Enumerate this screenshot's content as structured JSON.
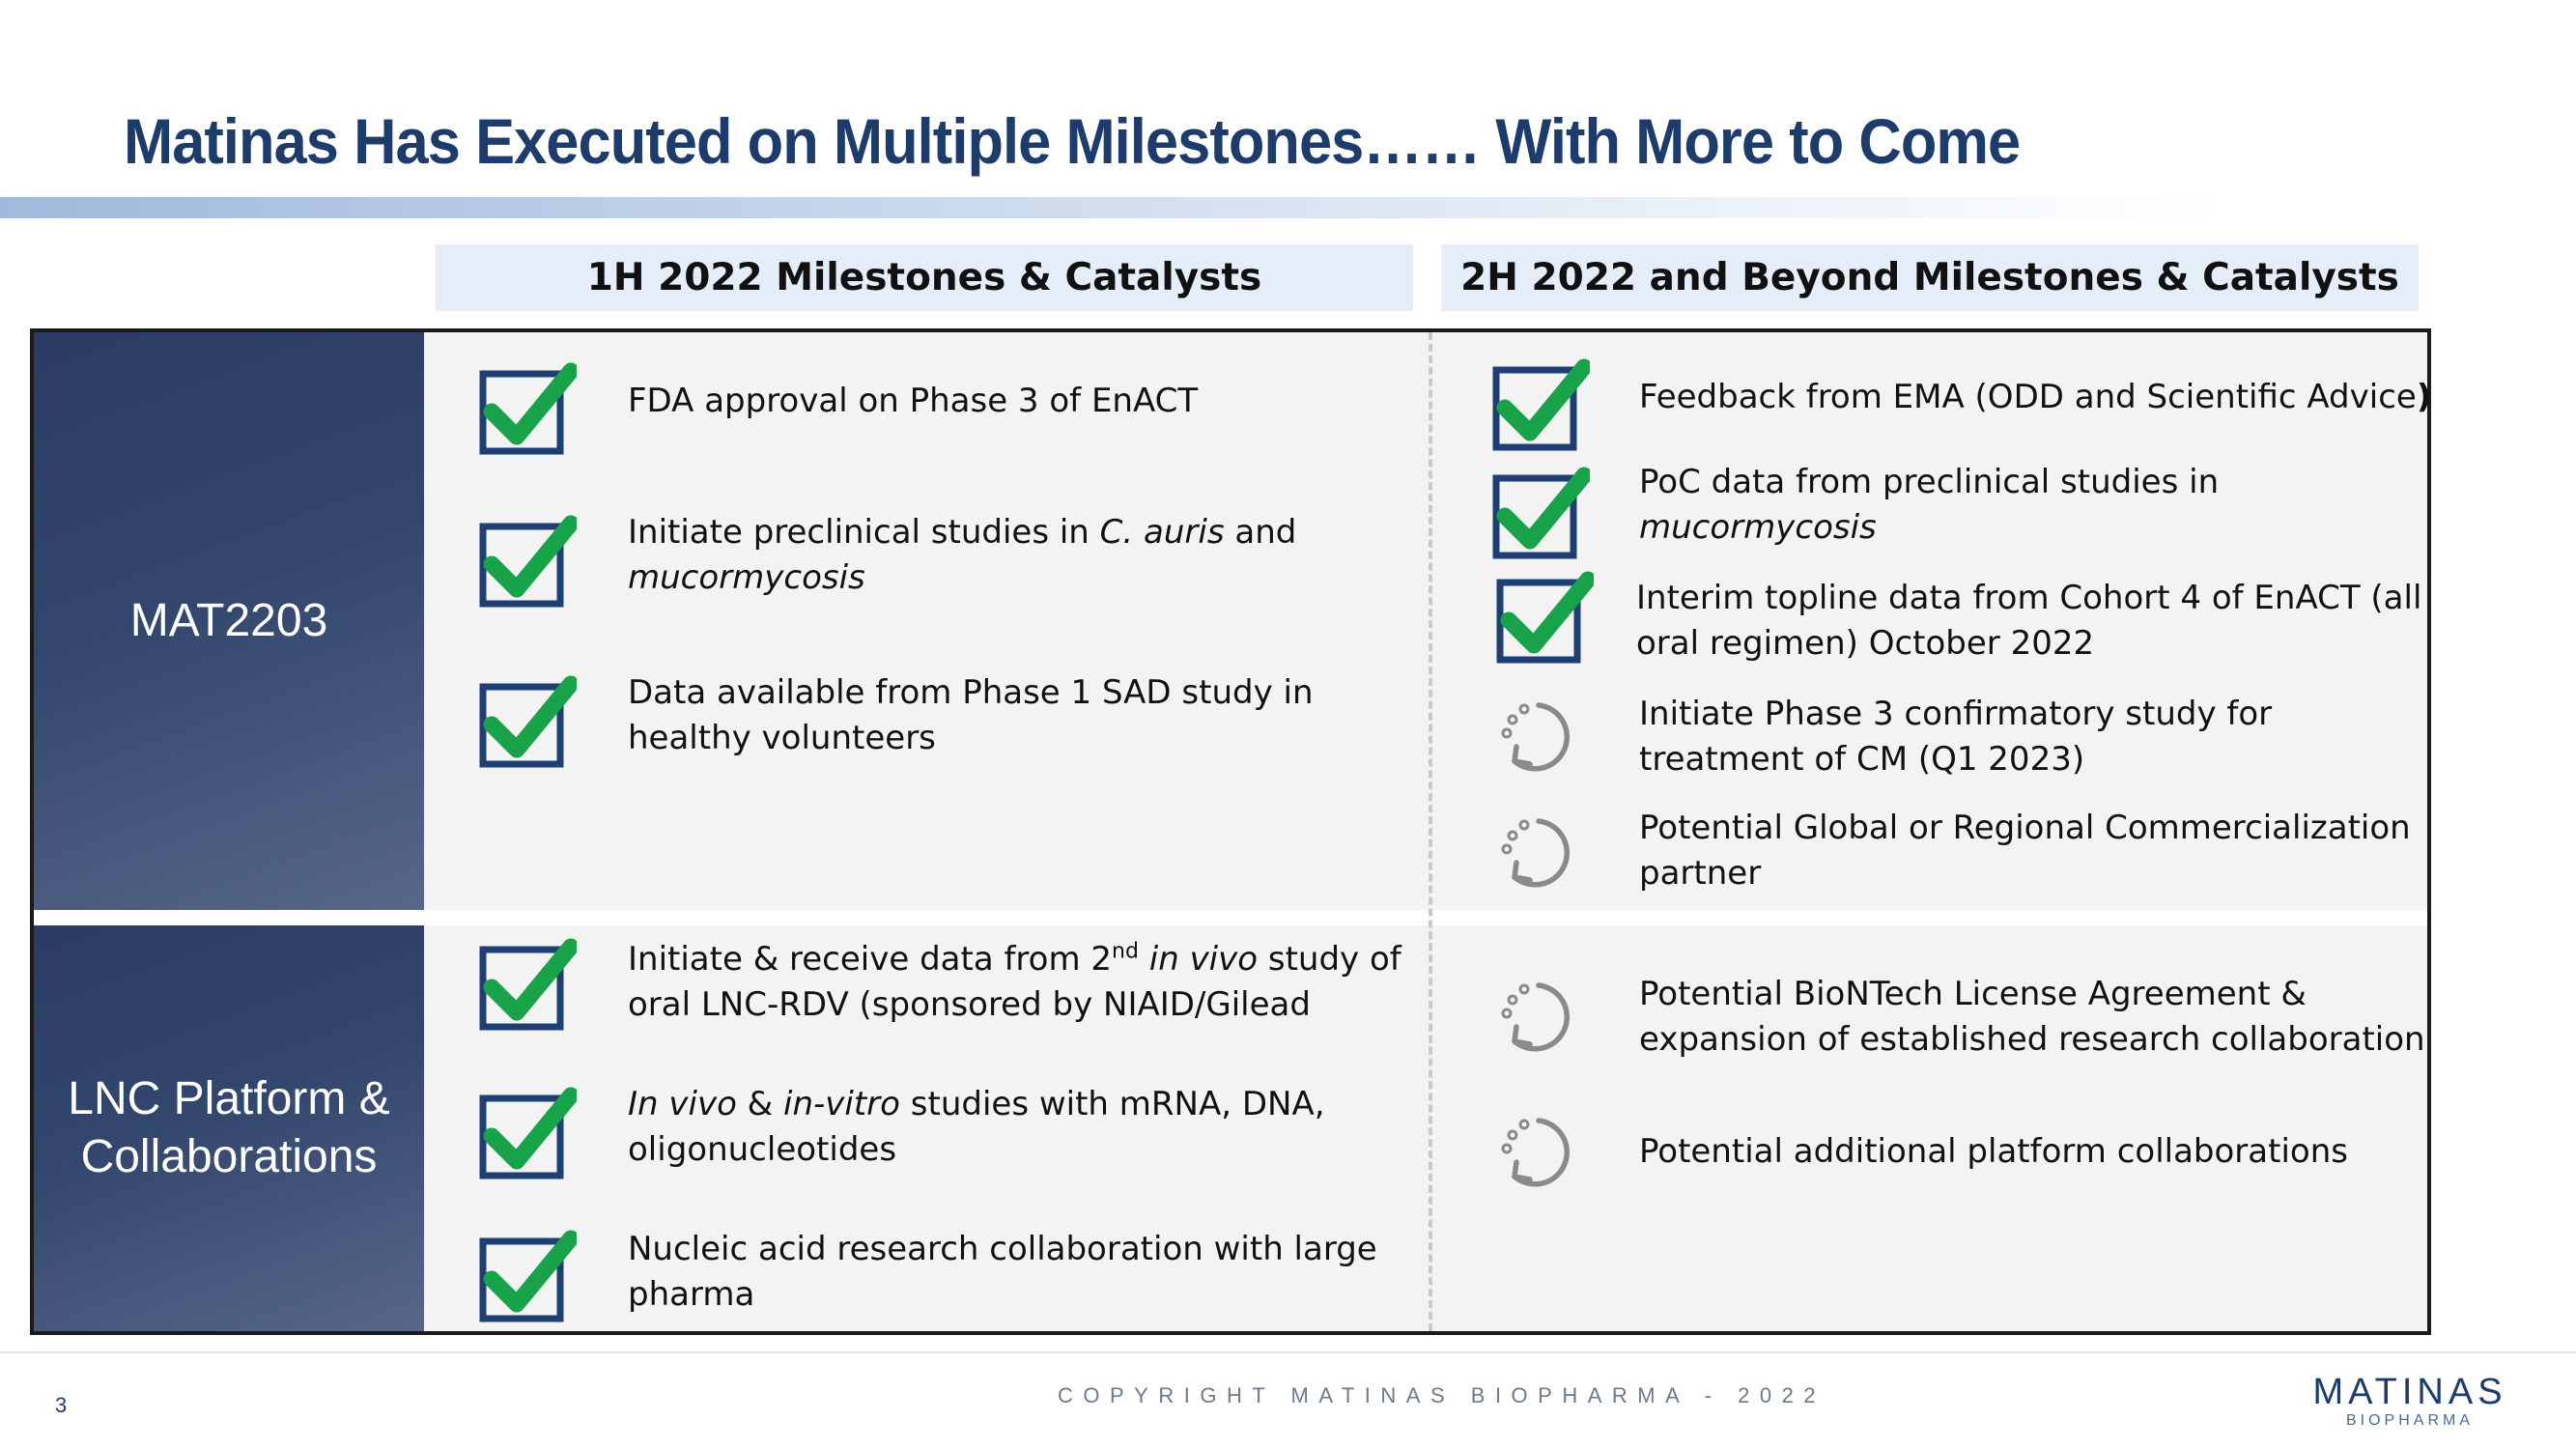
{
  "title": "Matinas Has Executed on Multiple Milestones…… With More to Come",
  "columns": {
    "first_half": "1H 2022 Milestones & Catalysts",
    "second_half": "2H 2022 and Beyond Milestones & Catalysts"
  },
  "rows": {
    "mat2203": {
      "label": "MAT2203",
      "first_half": [
        {
          "status": "completed",
          "line1": "FDA approval on Phase 3 of EnACT"
        },
        {
          "status": "completed",
          "line1a": "Initiate preclinical studies in ",
          "line1b": "C. auris",
          "line1c": " and",
          "line2": "mucormycosis"
        },
        {
          "status": "completed",
          "line1": "Data available from Phase 1 SAD study in",
          "line2": "healthy volunteers"
        }
      ],
      "second_half": [
        {
          "status": "completed",
          "line1": "Feedback from EMA (ODD and Scientific Advice",
          "line1_close": ")"
        },
        {
          "status": "completed",
          "line1": "PoC data from preclinical studies in",
          "line2": "mucormycosis"
        },
        {
          "status": "completed",
          "line1": "Interim topline data from Cohort 4 of EnACT (all",
          "line2": "oral regimen) October 2022"
        },
        {
          "status": "pending",
          "line1": "Initiate Phase 3 confirmatory study for",
          "line2": "treatment of CM (Q1 2023)"
        },
        {
          "status": "pending",
          "line1": "Potential Global or Regional Commercialization",
          "line2": "partner"
        }
      ]
    },
    "lnc": {
      "label_line1": "LNC Platform &",
      "label_line2": "Collaborations",
      "first_half": [
        {
          "status": "completed",
          "line1a": "Initiate & receive data from 2",
          "line1_sup": "nd",
          "line1b": " in vivo",
          "line1c": " study of",
          "line2": "oral LNC-RDV (sponsored by NIAID/Gilead"
        },
        {
          "status": "completed",
          "line1a": "In vivo",
          "line1b": " & ",
          "line1c": "in-vitro",
          "line1d": " studies with mRNA, DNA,",
          "line2": "oligonucleotides"
        },
        {
          "status": "completed",
          "line1": "Nucleic acid research collaboration with large",
          "line2": "pharma"
        }
      ],
      "second_half": [
        {
          "status": "pending",
          "line1": "Potential BioNTech License Agreement &",
          "line2": "expansion of established research collaboration"
        },
        {
          "status": "pending",
          "line1": "Potential additional platform collaborations"
        }
      ]
    }
  },
  "icons": {
    "completed": "checkbox-check-icon",
    "pending": "circular-arrow-icon"
  },
  "colors": {
    "title": "#1d3c6b",
    "check": "#18a24a",
    "box": "#1f3f73",
    "label_bg": "#2a3c63"
  },
  "footer": {
    "page_number": "3",
    "copyright": "COPYRIGHT MATINAS BIOPHARMA - 2022",
    "logo_main": "MATINAS",
    "logo_sub": "BIOPHARMA"
  }
}
